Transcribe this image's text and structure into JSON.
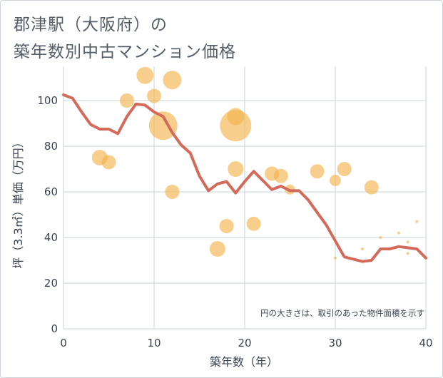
{
  "chart_data": {
    "type": "scatter",
    "title_line1": "郡津駅（大阪府）の",
    "title_line2": "築年数別中古マンション価格",
    "xlabel": "築年数（年）",
    "ylabel": "坪（3.3㎡）単価（万円）",
    "xlim": [
      0,
      40
    ],
    "ylim": [
      0,
      115
    ],
    "xticks": [
      "0",
      "10",
      "20",
      "30",
      "40"
    ],
    "yticks": [
      "0",
      "20",
      "40",
      "60",
      "80",
      "100"
    ],
    "grid": true,
    "note": "円の大きさは、取引のあった物件面積を示す",
    "colors": {
      "bubble": "#f3b44f",
      "line": "#d46a5a",
      "grid": "#c9d3de"
    },
    "bubbles": [
      {
        "x": 4,
        "y": 75,
        "r": 11
      },
      {
        "x": 5,
        "y": 73,
        "r": 10
      },
      {
        "x": 7,
        "y": 100,
        "r": 10
      },
      {
        "x": 9,
        "y": 111,
        "r": 12
      },
      {
        "x": 10,
        "y": 102,
        "r": 10
      },
      {
        "x": 11,
        "y": 89,
        "r": 20
      },
      {
        "x": 12,
        "y": 109,
        "r": 13
      },
      {
        "x": 12,
        "y": 60,
        "r": 10
      },
      {
        "x": 17,
        "y": 35,
        "r": 11
      },
      {
        "x": 18,
        "y": 45,
        "r": 10
      },
      {
        "x": 19,
        "y": 89,
        "r": 22
      },
      {
        "x": 19,
        "y": 93,
        "r": 12
      },
      {
        "x": 19,
        "y": 70,
        "r": 11
      },
      {
        "x": 21,
        "y": 46,
        "r": 10
      },
      {
        "x": 23,
        "y": 68,
        "r": 10
      },
      {
        "x": 24,
        "y": 67,
        "r": 10
      },
      {
        "x": 25,
        "y": 61,
        "r": 7
      },
      {
        "x": 28,
        "y": 69,
        "r": 10
      },
      {
        "x": 30,
        "y": 65,
        "r": 8
      },
      {
        "x": 30,
        "y": 31,
        "r": 2
      },
      {
        "x": 31,
        "y": 70,
        "r": 10
      },
      {
        "x": 33,
        "y": 35,
        "r": 2
      },
      {
        "x": 34,
        "y": 62,
        "r": 10
      },
      {
        "x": 35,
        "y": 40,
        "r": 2
      },
      {
        "x": 37,
        "y": 42,
        "r": 2
      },
      {
        "x": 38,
        "y": 38,
        "r": 2
      },
      {
        "x": 38,
        "y": 33,
        "r": 2
      },
      {
        "x": 39,
        "y": 47,
        "r": 2
      }
    ],
    "trend": {
      "x": [
        0,
        1,
        2,
        3,
        4,
        5,
        6,
        7,
        8,
        9,
        10,
        11,
        12,
        13,
        14,
        15,
        16,
        17,
        18,
        19,
        20,
        21,
        22,
        23,
        24,
        25,
        26,
        27,
        28,
        29,
        30,
        31,
        32,
        33,
        34,
        35,
        36,
        37,
        38,
        39,
        40
      ],
      "y": [
        102.5,
        101,
        95,
        89.5,
        87.5,
        87.5,
        85.5,
        93,
        98.5,
        98,
        95,
        93,
        86,
        80.5,
        77,
        67,
        60.5,
        63.5,
        64.5,
        59.5,
        64.5,
        69,
        65,
        61,
        62.5,
        60.5,
        60.5,
        56.5,
        51,
        45.5,
        38.5,
        31.5,
        30.5,
        29.5,
        30,
        35,
        35,
        36,
        35.5,
        35,
        31
      ]
    }
  }
}
